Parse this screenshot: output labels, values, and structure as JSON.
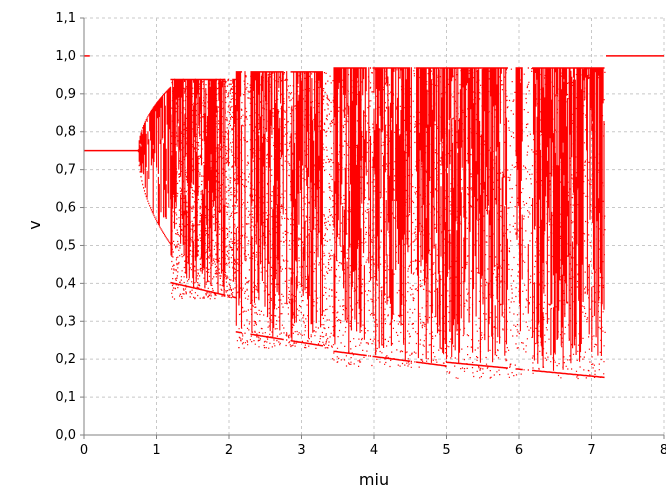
{
  "chart_data": {
    "type": "scatter",
    "title": "",
    "xlabel": "miu",
    "ylabel": "v",
    "xlim": [
      0,
      8
    ],
    "ylim": [
      0.0,
      1.1
    ],
    "x_ticks": [
      "0",
      "1",
      "2",
      "3",
      "4",
      "5",
      "6",
      "7",
      "8"
    ],
    "y_ticks": [
      "0,0",
      "0,1",
      "0,2",
      "0,3",
      "0,4",
      "0,5",
      "0,6",
      "0,7",
      "0,8",
      "0,9",
      "1,0",
      "1,1"
    ],
    "grid": true,
    "legend": "none",
    "series": [
      {
        "color": "#ff0000",
        "fixed_points": [
          {
            "x_range": [
              0.0,
              0.75
            ],
            "y": 0.75
          },
          {
            "x_range": [
              0.0,
              0.08
            ],
            "y": 1.0
          },
          {
            "x_range": [
              7.2,
              8.0
            ],
            "y": 1.0
          }
        ],
        "chaotic_bands": [
          {
            "x_range": [
              0.75,
              1.2
            ],
            "y_range": [
              0.5,
              0.92
            ]
          },
          {
            "x_range": [
              1.2,
              2.1
            ],
            "y_range": [
              0.36,
              0.94
            ]
          },
          {
            "x_range": [
              2.1,
              3.4
            ],
            "y_range": [
              0.23,
              0.96
            ]
          },
          {
            "x_range": [
              3.4,
              5.0
            ],
            "y_range": [
              0.18,
              0.97
            ]
          },
          {
            "x_range": [
              5.0,
              7.18
            ],
            "y_range": [
              0.15,
              0.97
            ]
          }
        ],
        "gaps": [
          [
            1.95,
            2.05
          ],
          [
            2.15,
            2.3
          ],
          [
            2.75,
            2.85
          ],
          [
            3.3,
            3.45
          ],
          [
            3.9,
            3.98
          ],
          [
            4.5,
            4.58
          ],
          [
            5.85,
            5.95
          ],
          [
            6.05,
            6.2
          ]
        ]
      }
    ]
  }
}
